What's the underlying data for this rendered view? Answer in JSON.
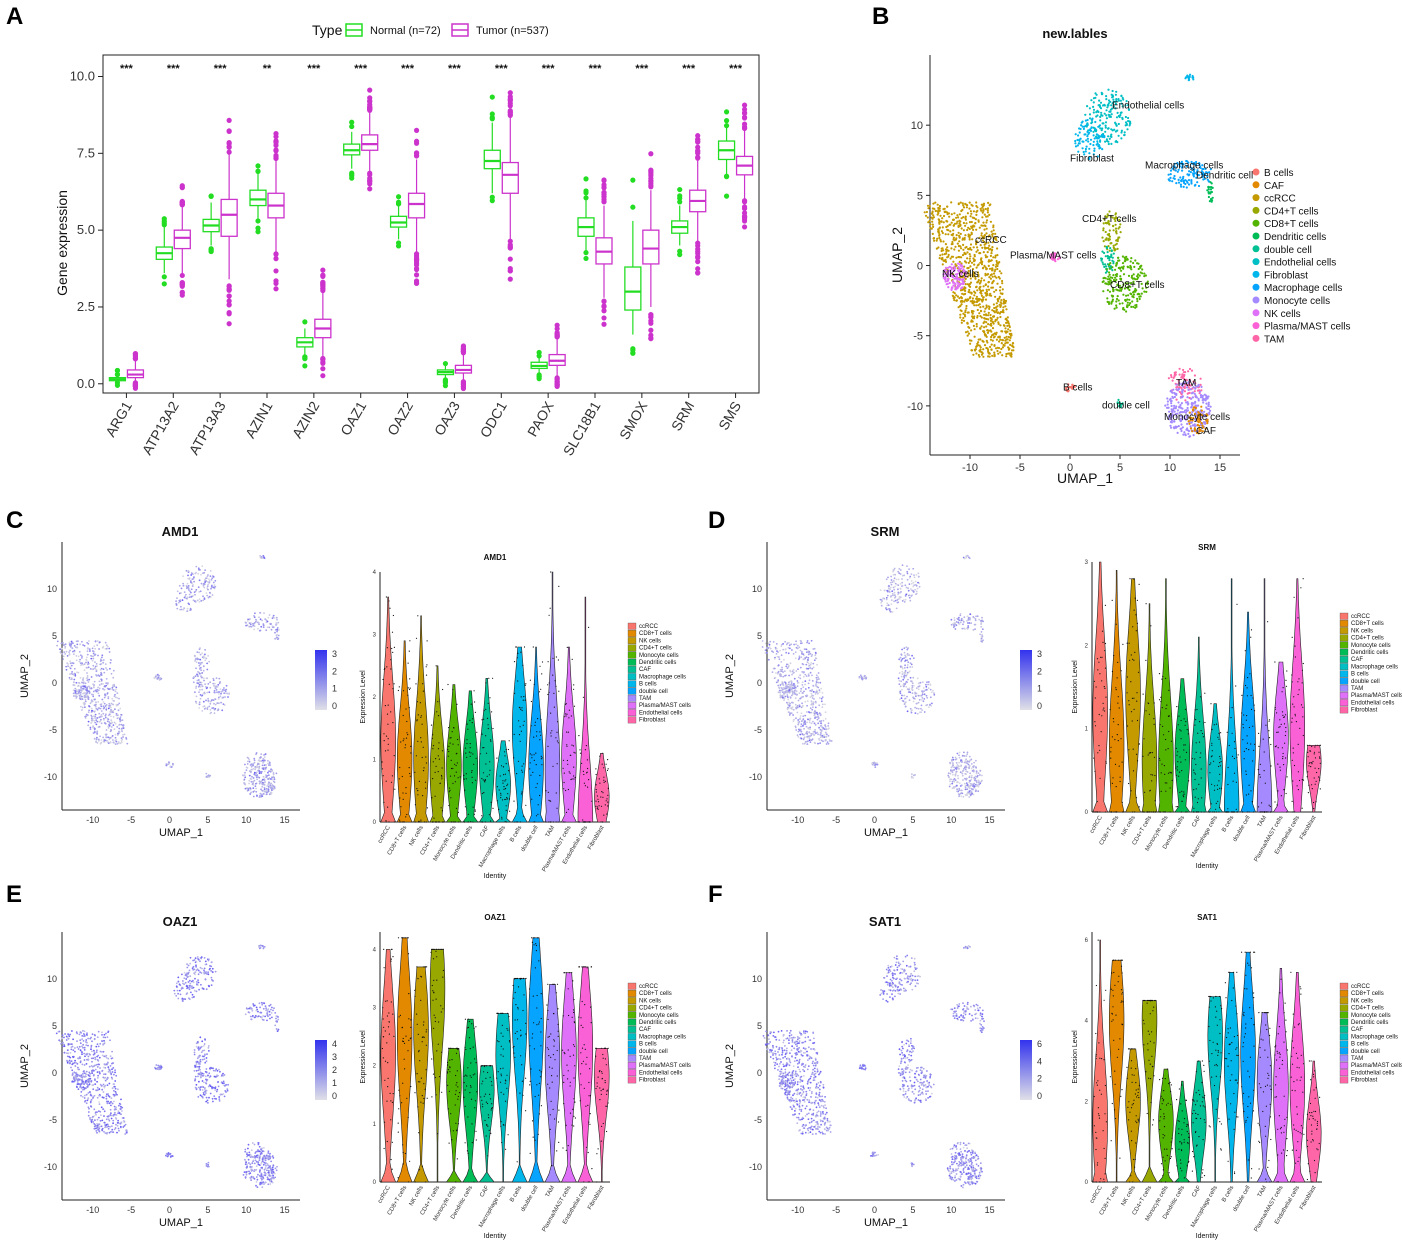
{
  "panels": {
    "A": {
      "letter": "A"
    },
    "B": {
      "letter": "B"
    },
    "C": {
      "letter": "C"
    },
    "D": {
      "letter": "D"
    },
    "E": {
      "letter": "E"
    },
    "F": {
      "letter": "F"
    }
  },
  "chart_data": [
    {
      "id": "A",
      "type": "box",
      "title": "",
      "xlabel": "",
      "ylabel": "Gene expression",
      "ylim": [
        -0.3,
        10.7
      ],
      "yticks": [
        "0.0",
        "2.5",
        "5.0",
        "7.5",
        "10.0"
      ],
      "legend_title": "Type",
      "series": [
        {
          "name": "Normal (n=72)",
          "color": "#22dd22"
        },
        {
          "name": "Tumor (n=537)",
          "color": "#cc33cc"
        }
      ],
      "categories": [
        "ARG1",
        "ATP13A2",
        "ATP13A3",
        "AZIN1",
        "AZIN2",
        "OAZ1",
        "OAZ2",
        "OAZ3",
        "ODC1",
        "PAOX",
        "SLC18B1",
        "SMOX",
        "SRM",
        "SMS"
      ],
      "significance": [
        "***",
        "***",
        "***",
        "**",
        "***",
        "***",
        "***",
        "***",
        "***",
        "***",
        "***",
        "***",
        "***",
        "***"
      ],
      "normal": [
        {
          "q1": 0.1,
          "median": 0.15,
          "q3": 0.2,
          "low": 0.05,
          "high": 0.3
        },
        {
          "q1": 4.05,
          "median": 4.25,
          "q3": 4.45,
          "low": 3.6,
          "high": 5.1
        },
        {
          "q1": 4.95,
          "median": 5.15,
          "q3": 5.35,
          "low": 4.5,
          "high": 5.9
        },
        {
          "q1": 5.8,
          "median": 6.0,
          "q3": 6.3,
          "low": 5.3,
          "high": 6.9
        },
        {
          "q1": 1.2,
          "median": 1.35,
          "q3": 1.5,
          "low": 0.9,
          "high": 1.8
        },
        {
          "q1": 7.45,
          "median": 7.6,
          "q3": 7.8,
          "low": 7.0,
          "high": 8.2
        },
        {
          "q1": 5.1,
          "median": 5.25,
          "q3": 5.45,
          "low": 4.7,
          "high": 5.8
        },
        {
          "q1": 0.3,
          "median": 0.38,
          "q3": 0.45,
          "low": 0.15,
          "high": 0.6
        },
        {
          "q1": 7.0,
          "median": 7.25,
          "q3": 7.6,
          "low": 6.2,
          "high": 8.5
        },
        {
          "q1": 0.5,
          "median": 0.58,
          "q3": 0.7,
          "low": 0.35,
          "high": 0.9
        },
        {
          "q1": 4.8,
          "median": 5.1,
          "q3": 5.4,
          "low": 4.3,
          "high": 6.0
        },
        {
          "q1": 2.4,
          "median": 3.0,
          "q3": 3.8,
          "low": 1.6,
          "high": 5.3
        },
        {
          "q1": 4.9,
          "median": 5.1,
          "q3": 5.3,
          "low": 4.5,
          "high": 5.8
        },
        {
          "q1": 7.3,
          "median": 7.6,
          "q3": 7.9,
          "low": 6.8,
          "high": 8.4
        }
      ],
      "tumor": [
        {
          "q1": 0.2,
          "median": 0.3,
          "q3": 0.45,
          "low": 0.05,
          "high": 0.8
        },
        {
          "q1": 4.4,
          "median": 4.75,
          "q3": 5.0,
          "low": 3.6,
          "high": 5.8
        },
        {
          "q1": 4.8,
          "median": 5.5,
          "q3": 6.0,
          "low": 3.4,
          "high": 7.5
        },
        {
          "q1": 5.4,
          "median": 5.8,
          "q3": 6.2,
          "low": 4.3,
          "high": 7.3
        },
        {
          "q1": 1.5,
          "median": 1.8,
          "q3": 2.1,
          "low": 0.9,
          "high": 3.0
        },
        {
          "q1": 7.6,
          "median": 7.8,
          "q3": 8.1,
          "low": 6.9,
          "high": 8.9
        },
        {
          "q1": 5.4,
          "median": 5.85,
          "q3": 6.2,
          "low": 4.3,
          "high": 7.3
        },
        {
          "q1": 0.35,
          "median": 0.45,
          "q3": 0.6,
          "low": 0.1,
          "high": 1.0
        },
        {
          "q1": 6.2,
          "median": 6.8,
          "q3": 7.2,
          "low": 4.7,
          "high": 8.7
        },
        {
          "q1": 0.6,
          "median": 0.75,
          "q3": 0.95,
          "low": 0.2,
          "high": 1.5
        },
        {
          "q1": 3.9,
          "median": 4.3,
          "q3": 4.75,
          "low": 2.8,
          "high": 5.8
        },
        {
          "q1": 3.9,
          "median": 4.4,
          "q3": 5.0,
          "low": 2.5,
          "high": 6.3
        },
        {
          "q1": 5.6,
          "median": 5.95,
          "q3": 6.3,
          "low": 4.6,
          "high": 7.3
        },
        {
          "q1": 6.8,
          "median": 7.1,
          "q3": 7.4,
          "low": 6.0,
          "high": 8.3
        }
      ]
    },
    {
      "id": "B",
      "type": "scatter",
      "title": "new.lables",
      "xlabel": "UMAP_1",
      "ylabel": "UMAP_2",
      "xlim": [
        -14,
        17
      ],
      "ylim": [
        -13.5,
        15
      ],
      "xticks": [
        "-10",
        "-5",
        "0",
        "5",
        "10",
        "15"
      ],
      "yticks": [
        "10",
        "5",
        "0",
        "-5",
        "-10"
      ],
      "legend": [
        {
          "name": "B cells",
          "color": "#f8766d"
        },
        {
          "name": "CAF",
          "color": "#e38900"
        },
        {
          "name": "ccRCC",
          "color": "#c49a00"
        },
        {
          "name": "CD4+T cells",
          "color": "#99a800"
        },
        {
          "name": "CD8+T cells",
          "color": "#53b400"
        },
        {
          "name": "Dendritic cells",
          "color": "#00bc56"
        },
        {
          "name": "double cell",
          "color": "#00c094"
        },
        {
          "name": "Endothelial cells",
          "color": "#00bfc4"
        },
        {
          "name": "Fibroblast",
          "color": "#00b6eb"
        },
        {
          "name": "Macrophage cells",
          "color": "#06a4ff"
        },
        {
          "name": "Monocyte cells",
          "color": "#a58aff"
        },
        {
          "name": "NK cells",
          "color": "#df70f8"
        },
        {
          "name": "Plasma/MAST cells",
          "color": "#fb61d7"
        },
        {
          "name": "TAM",
          "color": "#ff66a8"
        }
      ],
      "cluster_labels": [
        {
          "text": "Endothelial cells",
          "x": 4.2,
          "y": 11.2
        },
        {
          "text": "Fibroblast",
          "x": 0.0,
          "y": 7.4
        },
        {
          "text": "Macrophage cells",
          "x": 7.5,
          "y": 6.9
        },
        {
          "text": "Dendritic cell",
          "x": 12.6,
          "y": 6.2
        },
        {
          "text": "CD4+T cells",
          "x": 1.2,
          "y": 3.1
        },
        {
          "text": "ccRCC",
          "x": -9.5,
          "y": 1.6
        },
        {
          "text": "Plasma/MAST cells",
          "x": -6.0,
          "y": 0.5
        },
        {
          "text": "NK cells",
          "x": -12.8,
          "y": -0.8
        },
        {
          "text": "CD8+T cells",
          "x": 4.0,
          "y": -1.6
        },
        {
          "text": "B cells",
          "x": -0.7,
          "y": -8.9
        },
        {
          "text": "double cell",
          "x": 3.2,
          "y": -10.2
        },
        {
          "text": "TAM",
          "x": 10.6,
          "y": -8.6
        },
        {
          "text": "Monocyte cells",
          "x": 9.4,
          "y": -11.0
        },
        {
          "text": "CAF",
          "x": 12.6,
          "y": -12.0
        }
      ],
      "clusters": [
        {
          "label": "ccRCC",
          "cx": -9.5,
          "cy": -1.0,
          "rx": 3.5,
          "ry": 5.5,
          "count": 320
        },
        {
          "label": "NK cells",
          "cx": -11.5,
          "cy": -0.8,
          "rx": 1.2,
          "ry": 1.0,
          "count": 40
        },
        {
          "label": "Plasma/MAST cells",
          "cx": -1.5,
          "cy": 0.6,
          "rx": 0.5,
          "ry": 0.3,
          "count": 10
        },
        {
          "label": "Endothelial cells",
          "cx": 3.8,
          "cy": 10.6,
          "rx": 2.3,
          "ry": 2.0,
          "count": 60
        },
        {
          "label": "Fibroblast",
          "cx": 2.0,
          "cy": 9.0,
          "rx": 1.5,
          "ry": 1.5,
          "count": 30
        },
        {
          "label": "Macrophage cells",
          "cx": 12.0,
          "cy": 6.5,
          "rx": 2.3,
          "ry": 1.0,
          "count": 40
        },
        {
          "label": "Dendritic cells",
          "cx": 14.0,
          "cy": 5.2,
          "rx": 0.3,
          "ry": 0.9,
          "count": 8
        },
        {
          "label": "CD4+T cells",
          "cx": 4.2,
          "cy": 2.4,
          "rx": 1.0,
          "ry": 1.5,
          "count": 25
        },
        {
          "label": "double cell",
          "cx": 3.8,
          "cy": 0.4,
          "rx": 0.7,
          "ry": 1.0,
          "count": 15
        },
        {
          "label": "CD8+T cells",
          "cx": 5.5,
          "cy": -1.3,
          "rx": 2.3,
          "ry": 2.0,
          "count": 70
        },
        {
          "label": "B cells",
          "cx": 0.0,
          "cy": -8.7,
          "rx": 0.5,
          "ry": 0.3,
          "count": 8
        },
        {
          "label": "double cell",
          "cx": 5.0,
          "cy": -9.8,
          "rx": 0.3,
          "ry": 0.3,
          "count": 4
        },
        {
          "label": "TAM",
          "cx": 11.5,
          "cy": -8.5,
          "rx": 1.8,
          "ry": 1.2,
          "count": 30
        },
        {
          "label": "Monocyte cells",
          "cx": 11.8,
          "cy": -10.2,
          "rx": 2.3,
          "ry": 2.0,
          "count": 90
        },
        {
          "label": "CAF",
          "cx": 12.8,
          "cy": -11.0,
          "rx": 1.0,
          "ry": 1.0,
          "count": 20
        },
        {
          "label": "Fibroblast",
          "cx": 12.0,
          "cy": 13.4,
          "rx": 0.5,
          "ry": 0.2,
          "count": 6
        }
      ]
    },
    {
      "id": "C",
      "feature": {
        "title": "AMD1",
        "xlabel": "UMAP_1",
        "ylabel": "UMAP_2",
        "colorbar": [
          "3",
          "2",
          "1",
          "0"
        ],
        "intensity": 0.35
      },
      "violin": {
        "type": "violin",
        "title": "AMD1",
        "xlabel": "Identity",
        "ylabel": "Expression Level",
        "yticks": [
          "4",
          "3",
          "2",
          "1",
          "0"
        ],
        "ymax": 4,
        "categories": [
          "ccRCC",
          "CD8+T cells",
          "NK cells",
          "CD4+T cells",
          "Monocyte cells",
          "Dendritic cells",
          "CAF",
          "Macrophage cells",
          "B cells",
          "double cell",
          "TAM",
          "Plasma/MAST cells",
          "Endothelial cells",
          "Fibroblast"
        ],
        "upper": [
          3.6,
          2.9,
          3.3,
          2.5,
          2.2,
          2.1,
          2.3,
          1.3,
          2.8,
          2.8,
          4.0,
          2.8,
          3.6,
          1.1
        ],
        "mode": [
          1.3,
          1.0,
          1.0,
          0.8,
          0.9,
          0.9,
          0.9,
          0.6,
          1.5,
          0.9,
          0.8,
          1.0,
          0.0,
          0.4
        ],
        "zero": [
          true,
          true,
          true,
          true,
          true,
          true,
          true,
          true,
          true,
          true,
          true,
          true,
          false,
          false
        ]
      }
    },
    {
      "id": "D",
      "feature": {
        "title": "SRM",
        "xlabel": "UMAP_1",
        "ylabel": "UMAP_2",
        "colorbar": [
          "3",
          "2",
          "1",
          "0"
        ],
        "intensity": 0.3
      },
      "violin": {
        "type": "violin",
        "title": "SRM",
        "xlabel": "Identity",
        "ylabel": "Expression Level",
        "yticks": [
          "3",
          "2",
          "1",
          "0"
        ],
        "ymax": 3,
        "categories": [
          "ccRCC",
          "CD8+T cells",
          "NK cells",
          "CD4+T cells",
          "Monocyte cells",
          "Dendritic cells",
          "CAF",
          "Macrophage cells",
          "B cells",
          "double cell",
          "TAM",
          "Plasma/MAST cells",
          "Endothelial cells",
          "Fibroblast"
        ],
        "upper": [
          3.0,
          2.9,
          2.8,
          2.5,
          2.8,
          1.6,
          2.1,
          1.3,
          2.8,
          2.4,
          2.8,
          1.8,
          2.8,
          0.8
        ],
        "mode": [
          1.2,
          0.8,
          1.4,
          0.6,
          0.6,
          0.7,
          0.5,
          0.5,
          0.0,
          0.8,
          0.0,
          0.9,
          1.0,
          0.6
        ],
        "zero": [
          true,
          true,
          true,
          true,
          true,
          true,
          true,
          true,
          false,
          true,
          false,
          true,
          false,
          false
        ]
      }
    },
    {
      "id": "E",
      "feature": {
        "title": "OAZ1",
        "xlabel": "UMAP_1",
        "ylabel": "UMAP_2",
        "colorbar": [
          "4",
          "3",
          "2",
          "1",
          "0"
        ],
        "intensity": 0.6
      },
      "violin": {
        "type": "violin",
        "title": "OAZ1",
        "xlabel": "Identity",
        "ylabel": "Expression Level",
        "yticks": [
          "4",
          "3",
          "2",
          "1",
          "0"
        ],
        "ymax": 4.3,
        "categories": [
          "ccRCC",
          "CD8+T cells",
          "NK cells",
          "CD4+T cells",
          "Monocyte cells",
          "Dendritic cells",
          "CAF",
          "Macrophage cells",
          "B cells",
          "double cell",
          "TAM",
          "Plasma/MAST cells",
          "Endothelial cells",
          "Fibroblast"
        ],
        "upper": [
          4.0,
          4.2,
          3.7,
          4.0,
          2.3,
          2.8,
          2.0,
          2.9,
          3.5,
          4.2,
          3.4,
          3.6,
          3.7,
          2.3
        ],
        "mode": [
          2.2,
          2.5,
          2.6,
          3.3,
          1.7,
          1.7,
          1.6,
          2.2,
          2.8,
          2.7,
          2.1,
          2.2,
          2.3,
          1.8
        ],
        "zero": [
          true,
          true,
          true,
          false,
          true,
          true,
          true,
          false,
          true,
          true,
          true,
          true,
          true,
          false
        ]
      }
    },
    {
      "id": "F",
      "feature": {
        "title": "SAT1",
        "xlabel": "UMAP_1",
        "ylabel": "UMAP_2",
        "colorbar": [
          "6",
          "4",
          "2",
          "0"
        ],
        "intensity": 0.55
      },
      "violin": {
        "type": "violin",
        "title": "SAT1",
        "xlabel": "Identity",
        "ylabel": "Expression Level",
        "yticks": [
          "6",
          "4",
          "2",
          "0"
        ],
        "ymax": 6.2,
        "categories": [
          "ccRCC",
          "CD8+T cells",
          "NK cells",
          "CD4+T cells",
          "Monocyte cells",
          "Dendritic cells",
          "CAF",
          "Macrophage cells",
          "B cells",
          "double cell",
          "TAM",
          "Plasma/MAST cells",
          "Endothelial cells",
          "Fibroblast"
        ],
        "upper": [
          6.0,
          5.5,
          3.3,
          4.5,
          2.8,
          2.5,
          3.0,
          4.6,
          5.2,
          5.7,
          4.2,
          5.3,
          5.2,
          3.0
        ],
        "mode": [
          1.5,
          4.0,
          2.0,
          4.0,
          1.5,
          1.0,
          1.5,
          3.6,
          3.0,
          3.2,
          2.5,
          2.3,
          2.4,
          1.2
        ],
        "zero": [
          true,
          false,
          true,
          true,
          true,
          true,
          false,
          false,
          false,
          false,
          true,
          true,
          true,
          false
        ]
      }
    }
  ]
}
